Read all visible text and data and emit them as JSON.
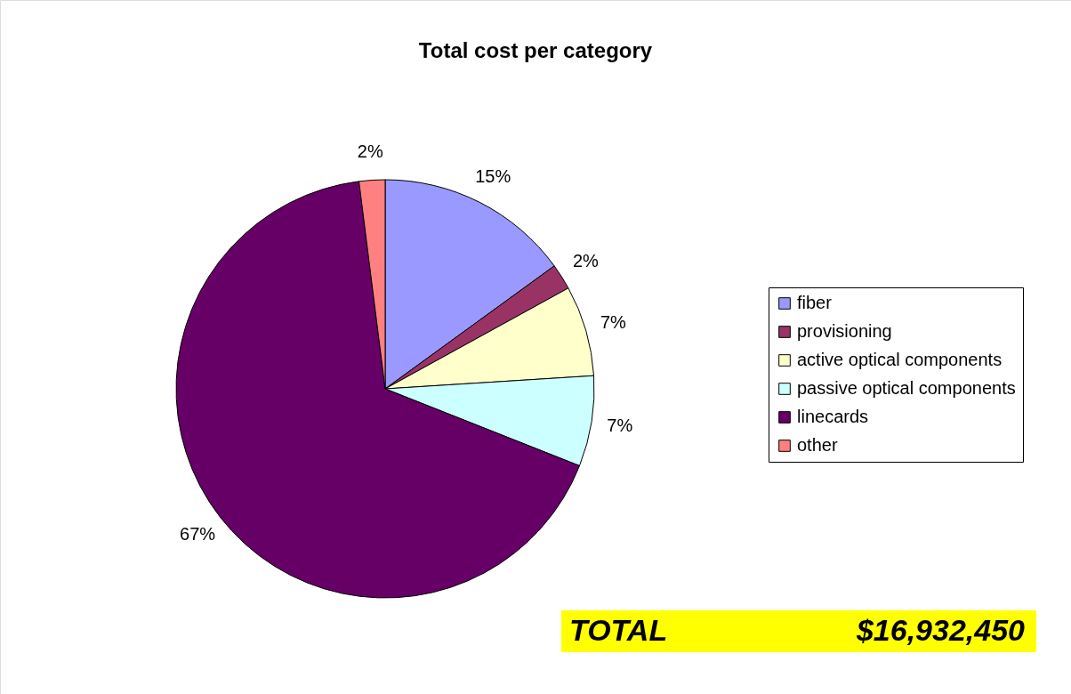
{
  "chart_data": {
    "type": "pie",
    "title": "Total cost per category",
    "categories": [
      "fiber",
      "provisioning",
      "active optical components",
      "passive optical components",
      "linecards",
      "other"
    ],
    "values": [
      15,
      2,
      7,
      7,
      67,
      2
    ],
    "value_labels": [
      "15%",
      "2%",
      "7%",
      "7%",
      "67%",
      "2%"
    ],
    "colors": [
      "#9999ff",
      "#993366",
      "#ffffcc",
      "#ccffff",
      "#660066",
      "#ff8080"
    ],
    "legend": "right",
    "annotations": [
      "TOTAL",
      "$16,932,450"
    ]
  }
}
